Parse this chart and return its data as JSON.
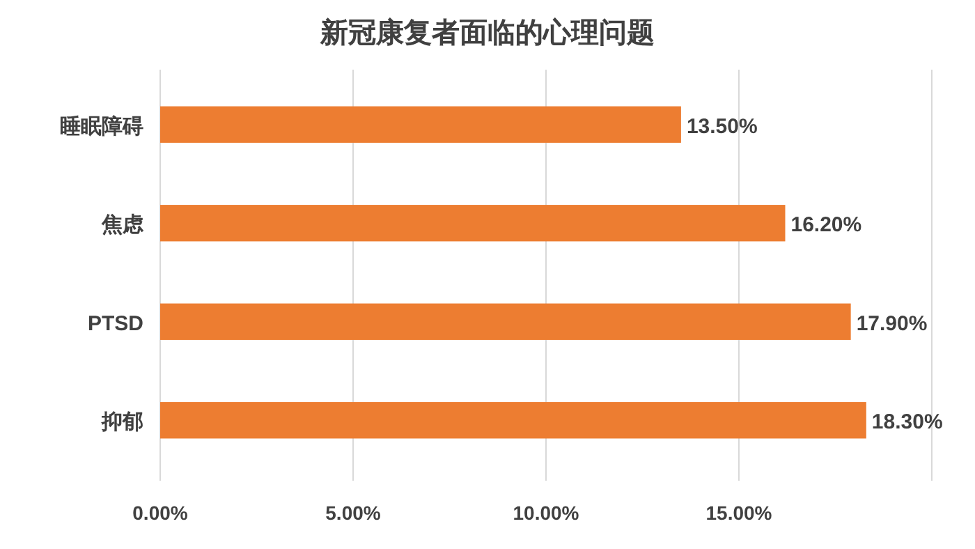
{
  "chart_data": {
    "type": "bar",
    "orientation": "horizontal",
    "title": "新冠康复者面临的心理问题",
    "categories": [
      "睡眠障碍",
      "焦虑",
      "PTSD",
      "抑郁"
    ],
    "values": [
      13.5,
      16.2,
      17.9,
      18.3
    ],
    "value_labels": [
      "13.50%",
      "16.20%",
      "17.90%",
      "18.30%"
    ],
    "color": "#ed7d31",
    "xlim": [
      0,
      20
    ],
    "xticks": [
      {
        "value": 0,
        "label": "0.00%"
      },
      {
        "value": 5,
        "label": "5.00%"
      },
      {
        "value": 10,
        "label": "10.00%"
      },
      {
        "value": 15,
        "label": "15.00%"
      },
      {
        "value": 20,
        "label": null
      }
    ],
    "grid": "x"
  }
}
